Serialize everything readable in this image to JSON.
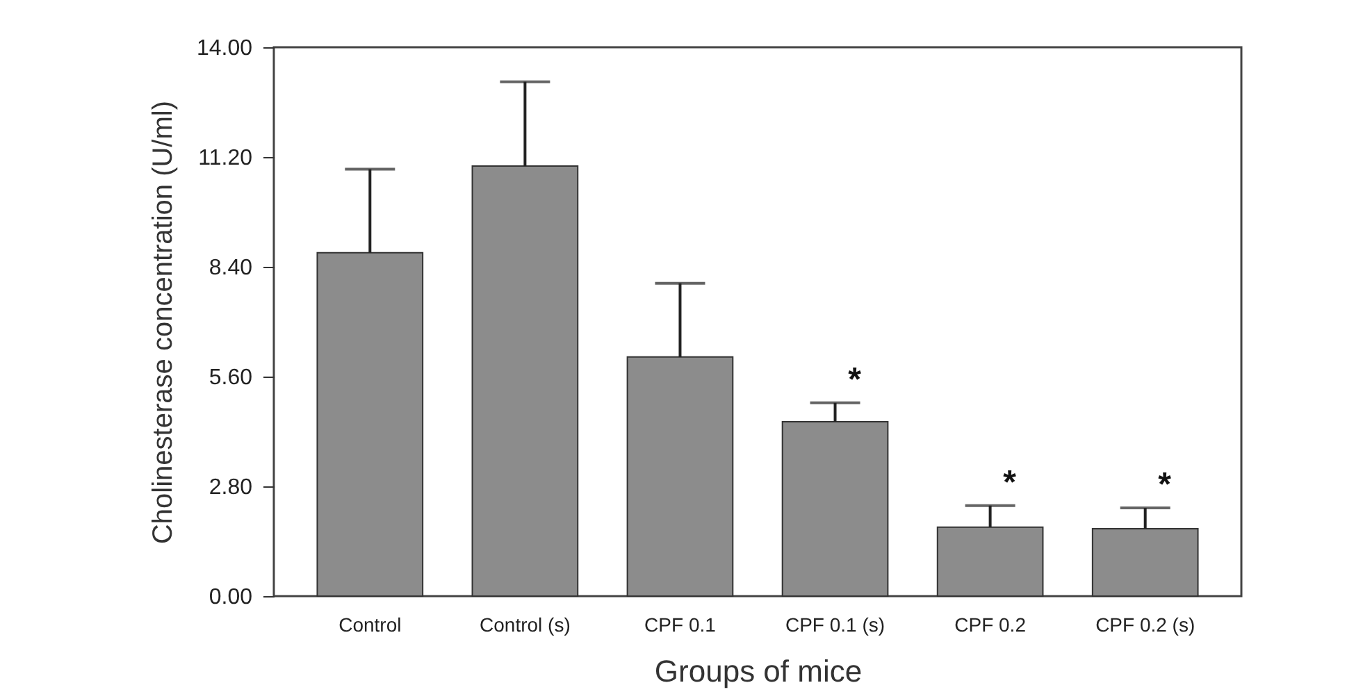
{
  "chart_data": {
    "type": "bar",
    "xlabel": "Groups of mice",
    "ylabel": "Cholinesterase concentration (U/ml)",
    "categories": [
      "Control",
      "Control (s)",
      "CPF 0.1",
      "CPF 0.1 (s)",
      "CPF 0.2",
      "CPF 0.2 (s)"
    ],
    "values": [
      8.76,
      10.97,
      6.1,
      4.45,
      1.76,
      1.72
    ],
    "errors": [
      [
        8.76,
        10.89
      ],
      [
        10.97,
        13.12
      ],
      [
        6.1,
        7.98
      ],
      [
        4.45,
        4.93
      ],
      [
        1.76,
        2.31
      ],
      [
        1.72,
        2.25
      ]
    ],
    "color": "#8c8c8c",
    "ylim": [
      0,
      14
    ],
    "yticks": [
      {
        "value": 0,
        "label": "0.00"
      },
      {
        "value": 2.8,
        "label": "2.80"
      },
      {
        "value": 5.6,
        "label": "5.60"
      },
      {
        "value": 8.4,
        "label": "8.40"
      },
      {
        "value": 11.2,
        "label": "11.20"
      },
      {
        "value": 14,
        "label": "14.00"
      }
    ],
    "grid": false,
    "annotations": [
      {
        "text": "*",
        "x": "CPF 0.1 (s)",
        "y": 4.93
      },
      {
        "text": "*",
        "x": "CPF 0.2",
        "y": 2.31
      },
      {
        "text": "*",
        "x": "CPF 0.2 (s)",
        "y": 2.25
      }
    ]
  }
}
